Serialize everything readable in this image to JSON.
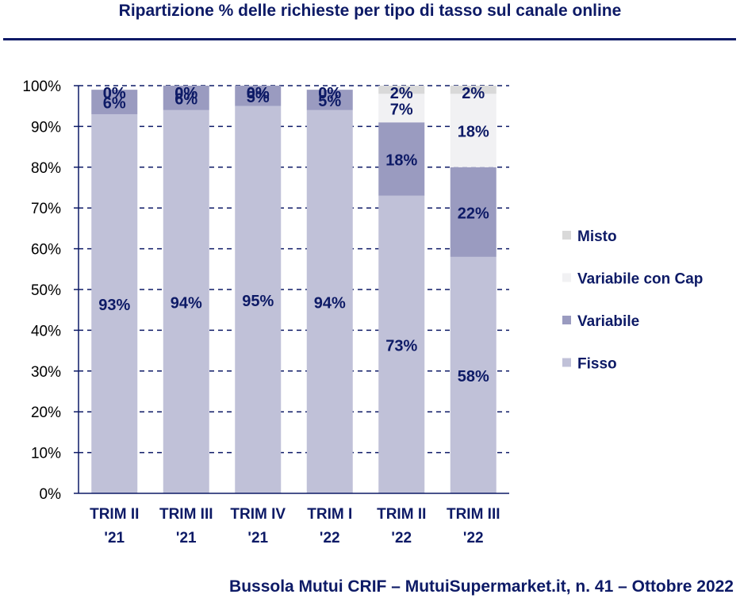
{
  "title": "Ripartizione % delle richieste per tipo di tasso sul canale online",
  "footer": "Bussola Mutui CRIF – MutuiSupermarket.it, n. 41 – Ottobre 2022",
  "chart_data": {
    "type": "bar",
    "stacked": true,
    "categories": [
      [
        "TRIM II",
        "'21"
      ],
      [
        "TRIM III",
        "'21"
      ],
      [
        "TRIM IV",
        "'21"
      ],
      [
        "TRIM I",
        "'22"
      ],
      [
        "TRIM II",
        "'22"
      ],
      [
        "TRIM III",
        "'22"
      ]
    ],
    "series": [
      {
        "name": "Fisso",
        "color": "#c0c1d8",
        "values": [
          93,
          94,
          95,
          94,
          73,
          58
        ]
      },
      {
        "name": "Variabile",
        "color": "#9a9bc0",
        "values": [
          6,
          6,
          5,
          5,
          18,
          22
        ]
      },
      {
        "name": "Variabile con Cap",
        "color": "#f1f1f3",
        "values": [
          0,
          0,
          0,
          0,
          7,
          18
        ]
      },
      {
        "name": "Misto",
        "color": "#d9d9d9",
        "values": [
          0,
          0,
          0,
          0,
          2,
          2
        ]
      }
    ],
    "ylim": [
      0,
      100
    ],
    "yticks": [
      "0%",
      "10%",
      "20%",
      "30%",
      "40%",
      "50%",
      "60%",
      "70%",
      "80%",
      "90%",
      "100%"
    ],
    "data_label_suffix": "%",
    "legend_position": "right",
    "legend_order": [
      "Misto",
      "Variabile con Cap",
      "Variabile",
      "Fisso"
    ],
    "grid": true
  }
}
